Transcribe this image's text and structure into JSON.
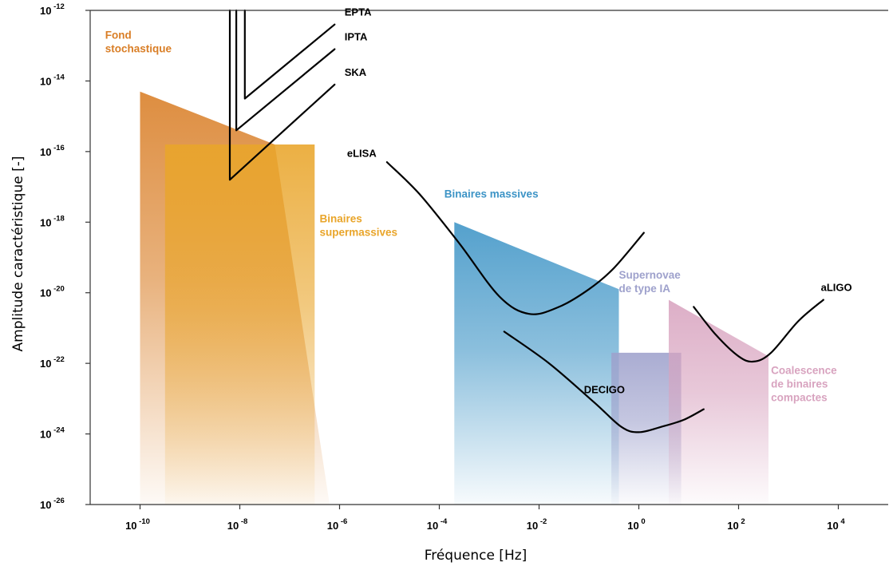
{
  "chart_data": {
    "type": "area",
    "xlabel": "Fréquence [Hz]",
    "ylabel": "Amplitude caractéristique [-]",
    "x_scale": "log10",
    "y_scale": "log10",
    "xlim_exp": [
      -11,
      5
    ],
    "ylim_exp": [
      -26,
      -12
    ],
    "grid": false,
    "x_ticks": [
      {
        "base": "10",
        "exp": "-10",
        "value": -10
      },
      {
        "base": "10",
        "exp": "-8",
        "value": -8
      },
      {
        "base": "10",
        "exp": "-6",
        "value": -6
      },
      {
        "base": "10",
        "exp": "-4",
        "value": -4
      },
      {
        "base": "10",
        "exp": "-2",
        "value": -2
      },
      {
        "base": "10",
        "exp": "0",
        "value": 0
      },
      {
        "base": "10",
        "exp": "2",
        "value": 2
      },
      {
        "base": "10",
        "exp": "4",
        "value": 4
      }
    ],
    "y_ticks": [
      {
        "base": "10",
        "exp": "-12",
        "value": -12
      },
      {
        "base": "10",
        "exp": "-14",
        "value": -14
      },
      {
        "base": "10",
        "exp": "-16",
        "value": -16
      },
      {
        "base": "10",
        "exp": "-18",
        "value": -18
      },
      {
        "base": "10",
        "exp": "-20",
        "value": -20
      },
      {
        "base": "10",
        "exp": "-22",
        "value": -22
      },
      {
        "base": "10",
        "exp": "-24",
        "value": -24
      },
      {
        "base": "10",
        "exp": "-26",
        "value": -26
      }
    ],
    "regions": [
      {
        "id": "fond-stochastique",
        "label_lines": [
          "Fond",
          "stochastique"
        ],
        "color": "#d97e26",
        "polygon": [
          [
            -10,
            -14.3
          ],
          [
            -7.3,
            -15.8
          ],
          [
            -6.2,
            -26
          ],
          [
            -10,
            -26
          ]
        ],
        "label_at": [
          -10.7,
          -12.8
        ]
      },
      {
        "id": "binaires-supermassives",
        "label_lines": [
          "Binaires",
          "supermassives"
        ],
        "color": "#e9a52a",
        "polygon": [
          [
            -9.5,
            -15.8
          ],
          [
            -6.5,
            -15.8
          ],
          [
            -6.5,
            -26
          ],
          [
            -9.5,
            -26
          ]
        ],
        "label_at": [
          -6.4,
          -18.0
        ]
      },
      {
        "id": "binaires-massives",
        "label_lines": [
          "Binaires massives"
        ],
        "color": "#3d94c6",
        "polygon": [
          [
            -3.7,
            -18.0
          ],
          [
            -0.4,
            -19.9
          ],
          [
            -0.4,
            -26
          ],
          [
            -3.7,
            -26
          ]
        ],
        "label_at": [
          -3.9,
          -17.3
        ]
      },
      {
        "id": "supernovae-type-ia",
        "label_lines": [
          "Supernovae",
          "de type IA"
        ],
        "color": "#9ea1cc",
        "polygon": [
          [
            -0.55,
            -21.7
          ],
          [
            0.85,
            -21.7
          ],
          [
            0.85,
            -26
          ],
          [
            -0.55,
            -26
          ]
        ],
        "label_at": [
          -0.4,
          -19.6
        ]
      },
      {
        "id": "coalescence-binaires-compactes",
        "label_lines": [
          "Coalescence",
          "de binaires",
          "compactes"
        ],
        "color": "#d8a3bf",
        "polygon": [
          [
            0.6,
            -20.2
          ],
          [
            2.6,
            -21.8
          ],
          [
            2.6,
            -26
          ],
          [
            0.6,
            -26
          ]
        ],
        "label_at": [
          2.65,
          -22.3
        ]
      }
    ],
    "curves": [
      {
        "name": "EPTA",
        "points": [
          [
            -7.9,
            -12
          ],
          [
            -7.9,
            -14.5
          ],
          [
            -6.1,
            -12.4
          ]
        ],
        "label_at": [
          -5.9,
          -12.15
        ]
      },
      {
        "name": "IPTA",
        "points": [
          [
            -8.07,
            -12
          ],
          [
            -8.07,
            -15.4
          ],
          [
            -6.1,
            -13.1
          ]
        ],
        "label_at": [
          -5.9,
          -12.85
        ]
      },
      {
        "name": "SKA",
        "points": [
          [
            -8.2,
            -12
          ],
          [
            -8.2,
            -16.8
          ],
          [
            -6.1,
            -14.1
          ]
        ],
        "label_at": [
          -5.9,
          -13.85
        ]
      },
      {
        "name": "eLISA",
        "points": [
          [
            -5.05,
            -16.3
          ],
          [
            -4.4,
            -17.2
          ],
          [
            -3.6,
            -18.6
          ],
          [
            -2.8,
            -20.1
          ],
          [
            -2.2,
            -20.6
          ],
          [
            -1.6,
            -20.4
          ],
          [
            -1.0,
            -19.9
          ],
          [
            -0.5,
            -19.3
          ],
          [
            0.1,
            -18.3
          ]
        ],
        "label_at": [
          -5.85,
          -16.15
        ]
      },
      {
        "name": "DECIGO",
        "points": [
          [
            -2.7,
            -21.1
          ],
          [
            -1.8,
            -22.0
          ],
          [
            -0.9,
            -23.1
          ],
          [
            -0.35,
            -23.8
          ],
          [
            0.0,
            -23.95
          ],
          [
            0.45,
            -23.8
          ],
          [
            0.9,
            -23.6
          ],
          [
            1.3,
            -23.3
          ]
        ],
        "label_at": [
          -1.1,
          -22.85
        ]
      },
      {
        "name": "aLIGO",
        "points": [
          [
            1.1,
            -20.4
          ],
          [
            1.55,
            -21.2
          ],
          [
            2.0,
            -21.8
          ],
          [
            2.3,
            -21.95
          ],
          [
            2.65,
            -21.7
          ],
          [
            3.2,
            -20.8
          ],
          [
            3.7,
            -20.2
          ]
        ],
        "label_at": [
          3.65,
          -19.95
        ]
      }
    ]
  }
}
